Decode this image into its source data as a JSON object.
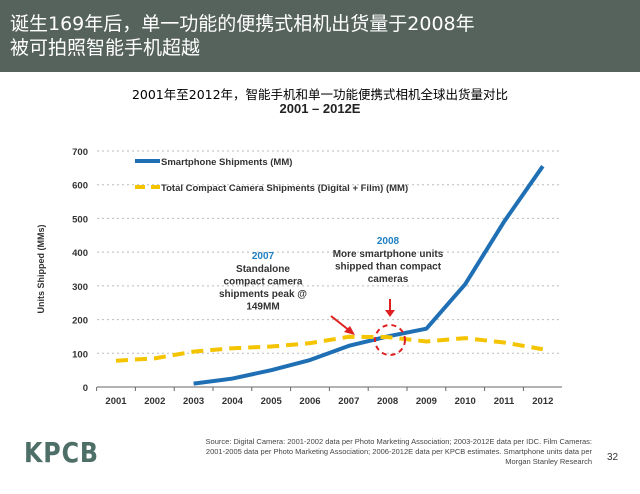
{
  "header": {
    "title_line1": "诞生169年后，单一功能的便携式相机出货量于2008年",
    "title_line2": "被可拍照智能手机超越"
  },
  "chart_data": {
    "type": "line",
    "title": "2001年至2012年，智能手机和单一功能便携式相机全球出货量对比",
    "subtitle": "2001 – 2012E",
    "ylabel": "Units Shipped (MMs)",
    "xlabel": "",
    "ylim": [
      0,
      700
    ],
    "yticks": [
      0,
      100,
      200,
      300,
      400,
      500,
      600,
      700
    ],
    "categories": [
      "2001",
      "2002",
      "2003",
      "2004",
      "2005",
      "2006",
      "2007",
      "2008",
      "2009",
      "2010",
      "2011",
      "2012"
    ],
    "grid": true,
    "legend": "top-left",
    "series": [
      {
        "name": "Smartphone Shipments (MM)",
        "color": "#1f6fb5",
        "style": "solid",
        "values": [
          null,
          null,
          10,
          25,
          50,
          80,
          122,
          150,
          173,
          305,
          490,
          655
        ]
      },
      {
        "name": "Total Compact Camera Shipments (Digital + Film) (MM)",
        "color": "#f5c400",
        "style": "dashed",
        "values": [
          78,
          85,
          105,
          115,
          120,
          130,
          149,
          148,
          135,
          145,
          132,
          112
        ]
      }
    ],
    "annotations": [
      {
        "year": "2007",
        "lines": [
          "Standalone",
          "compact camera",
          "shipments peak @",
          "149MM"
        ]
      },
      {
        "year": "2008",
        "lines": [
          "More smartphone units",
          "shipped than compact",
          "cameras"
        ]
      }
    ]
  },
  "footer": {
    "logo": "KPCB",
    "source": [
      "Source: Digital Camera: 2001-2002 data per Photo Marketing Association; 2003-2012E data per IDC. Film Cameras:",
      "2001-2005 data per Photo Marketing Association; 2006-2012E data per KPCB estimates.  Smartphone units data per",
      "Morgan Stanley Research"
    ],
    "page": "32"
  }
}
